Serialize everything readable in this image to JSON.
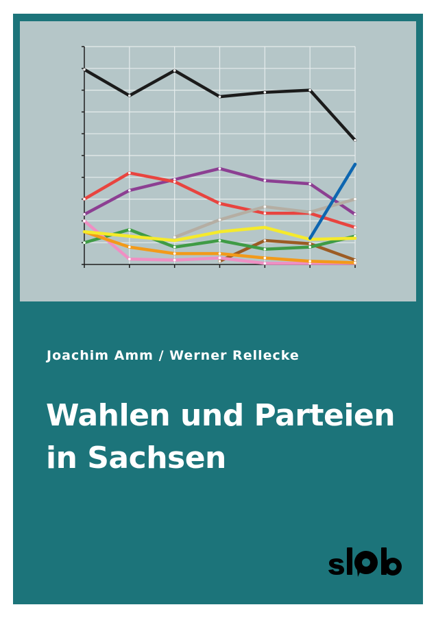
{
  "cover": {
    "authors": "Joachim Amm / Werner Rellecke",
    "title_line1": "Wahlen und Parteien",
    "title_line2": "in Sachsen",
    "publisher_logo": "slpb",
    "colors": {
      "background": "#1c747a",
      "chart_panel": "#b5c6c8",
      "text": "#ffffff",
      "logo": "#000000"
    }
  },
  "chart_data": {
    "type": "line",
    "categories": [
      "1",
      "2",
      "3",
      "4",
      "5",
      "6",
      "7"
    ],
    "ylim": [
      0,
      100
    ],
    "y_ticks": [
      0,
      10,
      20,
      30,
      40,
      50,
      60,
      70,
      80,
      90,
      100
    ],
    "grid": true,
    "legend": "none",
    "series": [
      {
        "color": "#1b1b1b",
        "values": [
          89.5,
          77.5,
          89,
          77,
          79,
          80,
          57
        ],
        "dot": "#ffffff"
      },
      {
        "color": "#8c3f92",
        "values": [
          23,
          34,
          39,
          44,
          38.5,
          37,
          23
        ],
        "dot": "#ffffff"
      },
      {
        "color": "#e8443f",
        "values": [
          30,
          42,
          38,
          28,
          23.5,
          23.5,
          17
        ],
        "dot": "#ffffff"
      },
      {
        "color": "#b5aea3",
        "values": [
          null,
          null,
          12.5,
          20.5,
          26.5,
          24,
          30
        ],
        "dot": "#ffffff"
      },
      {
        "color": "#9c5c24",
        "values": [
          null,
          null,
          null,
          1.5,
          11,
          9.5,
          2
        ],
        "dot": "#ffffff"
      },
      {
        "color": "#3f9b45",
        "values": [
          10,
          16,
          8,
          11,
          7,
          8,
          13
        ],
        "dot": "#ffffff"
      },
      {
        "color": "#ef8fc3",
        "values": [
          20,
          2.5,
          2,
          3,
          0.5,
          0.5,
          0.5
        ],
        "dot": "#ffffff"
      },
      {
        "color": "#f29a1a",
        "values": [
          15,
          8,
          5,
          5,
          3,
          1.5,
          0.8
        ],
        "dot": "#ffffff"
      },
      {
        "color": "#f5ea2c",
        "values": [
          15,
          13,
          11,
          15,
          17,
          11.5,
          12
        ],
        "dot": "#f5ea2c"
      },
      {
        "color": "#0d66b0",
        "values": [
          null,
          null,
          null,
          null,
          null,
          12,
          46
        ],
        "dot": "#0d66b0"
      }
    ]
  }
}
